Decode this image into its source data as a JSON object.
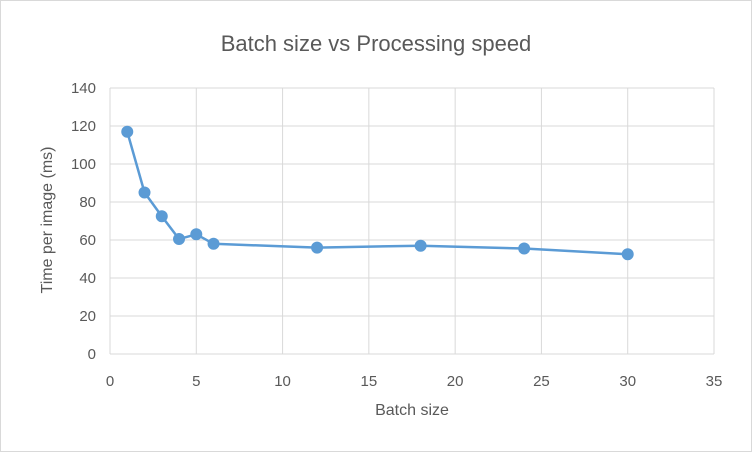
{
  "chart_data": {
    "type": "scatter",
    "title": "Batch size vs Processing  speed",
    "xlabel": "Batch size",
    "ylabel": "Time per image (ms)",
    "xlim": [
      0,
      35
    ],
    "ylim": [
      0,
      140
    ],
    "xticks": [
      0,
      5,
      10,
      15,
      20,
      25,
      30,
      35
    ],
    "yticks": [
      0,
      20,
      40,
      60,
      80,
      100,
      120,
      140
    ],
    "grid": true,
    "legend": "none",
    "line_color": "#5b9bd5",
    "grid_color": "#d9d9d9",
    "series": [
      {
        "x": [
          1,
          2,
          3,
          4,
          5,
          6,
          12,
          18,
          24,
          30
        ],
        "y": [
          117,
          85,
          72.5,
          60.5,
          63,
          58,
          56,
          57,
          55.5,
          52.5
        ]
      }
    ]
  }
}
